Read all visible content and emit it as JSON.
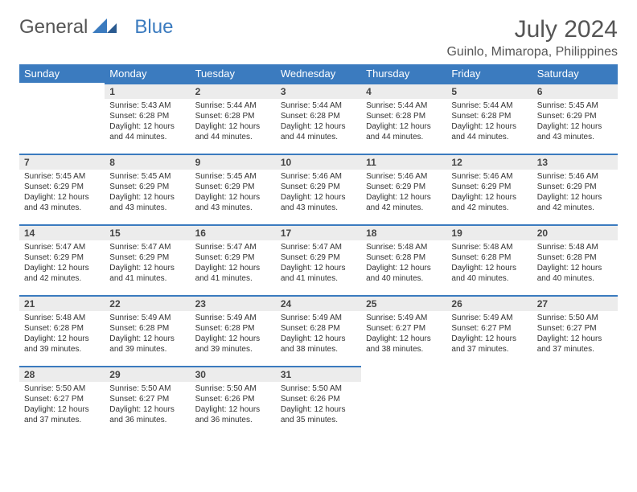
{
  "brand": {
    "part1": "General",
    "part2": "Blue"
  },
  "title": "July 2024",
  "location": "Guinlo, Mimaropa, Philippines",
  "weekdays": [
    "Sunday",
    "Monday",
    "Tuesday",
    "Wednesday",
    "Thursday",
    "Friday",
    "Saturday"
  ],
  "colors": {
    "header_bg": "#3b7bbf",
    "header_text": "#ffffff",
    "daynum_bg": "#ececec",
    "daynum_border": "#3b7bbf",
    "text": "#333333",
    "brand_gray": "#555555",
    "brand_blue": "#3b7bbf"
  },
  "start_offset": 1,
  "days": [
    {
      "n": 1,
      "sunrise": "5:43 AM",
      "sunset": "6:28 PM",
      "daylight": "12 hours and 44 minutes."
    },
    {
      "n": 2,
      "sunrise": "5:44 AM",
      "sunset": "6:28 PM",
      "daylight": "12 hours and 44 minutes."
    },
    {
      "n": 3,
      "sunrise": "5:44 AM",
      "sunset": "6:28 PM",
      "daylight": "12 hours and 44 minutes."
    },
    {
      "n": 4,
      "sunrise": "5:44 AM",
      "sunset": "6:28 PM",
      "daylight": "12 hours and 44 minutes."
    },
    {
      "n": 5,
      "sunrise": "5:44 AM",
      "sunset": "6:28 PM",
      "daylight": "12 hours and 44 minutes."
    },
    {
      "n": 6,
      "sunrise": "5:45 AM",
      "sunset": "6:29 PM",
      "daylight": "12 hours and 43 minutes."
    },
    {
      "n": 7,
      "sunrise": "5:45 AM",
      "sunset": "6:29 PM",
      "daylight": "12 hours and 43 minutes."
    },
    {
      "n": 8,
      "sunrise": "5:45 AM",
      "sunset": "6:29 PM",
      "daylight": "12 hours and 43 minutes."
    },
    {
      "n": 9,
      "sunrise": "5:45 AM",
      "sunset": "6:29 PM",
      "daylight": "12 hours and 43 minutes."
    },
    {
      "n": 10,
      "sunrise": "5:46 AM",
      "sunset": "6:29 PM",
      "daylight": "12 hours and 43 minutes."
    },
    {
      "n": 11,
      "sunrise": "5:46 AM",
      "sunset": "6:29 PM",
      "daylight": "12 hours and 42 minutes."
    },
    {
      "n": 12,
      "sunrise": "5:46 AM",
      "sunset": "6:29 PM",
      "daylight": "12 hours and 42 minutes."
    },
    {
      "n": 13,
      "sunrise": "5:46 AM",
      "sunset": "6:29 PM",
      "daylight": "12 hours and 42 minutes."
    },
    {
      "n": 14,
      "sunrise": "5:47 AM",
      "sunset": "6:29 PM",
      "daylight": "12 hours and 42 minutes."
    },
    {
      "n": 15,
      "sunrise": "5:47 AM",
      "sunset": "6:29 PM",
      "daylight": "12 hours and 41 minutes."
    },
    {
      "n": 16,
      "sunrise": "5:47 AM",
      "sunset": "6:29 PM",
      "daylight": "12 hours and 41 minutes."
    },
    {
      "n": 17,
      "sunrise": "5:47 AM",
      "sunset": "6:29 PM",
      "daylight": "12 hours and 41 minutes."
    },
    {
      "n": 18,
      "sunrise": "5:48 AM",
      "sunset": "6:28 PM",
      "daylight": "12 hours and 40 minutes."
    },
    {
      "n": 19,
      "sunrise": "5:48 AM",
      "sunset": "6:28 PM",
      "daylight": "12 hours and 40 minutes."
    },
    {
      "n": 20,
      "sunrise": "5:48 AM",
      "sunset": "6:28 PM",
      "daylight": "12 hours and 40 minutes."
    },
    {
      "n": 21,
      "sunrise": "5:48 AM",
      "sunset": "6:28 PM",
      "daylight": "12 hours and 39 minutes."
    },
    {
      "n": 22,
      "sunrise": "5:49 AM",
      "sunset": "6:28 PM",
      "daylight": "12 hours and 39 minutes."
    },
    {
      "n": 23,
      "sunrise": "5:49 AM",
      "sunset": "6:28 PM",
      "daylight": "12 hours and 39 minutes."
    },
    {
      "n": 24,
      "sunrise": "5:49 AM",
      "sunset": "6:28 PM",
      "daylight": "12 hours and 38 minutes."
    },
    {
      "n": 25,
      "sunrise": "5:49 AM",
      "sunset": "6:27 PM",
      "daylight": "12 hours and 38 minutes."
    },
    {
      "n": 26,
      "sunrise": "5:49 AM",
      "sunset": "6:27 PM",
      "daylight": "12 hours and 37 minutes."
    },
    {
      "n": 27,
      "sunrise": "5:50 AM",
      "sunset": "6:27 PM",
      "daylight": "12 hours and 37 minutes."
    },
    {
      "n": 28,
      "sunrise": "5:50 AM",
      "sunset": "6:27 PM",
      "daylight": "12 hours and 37 minutes."
    },
    {
      "n": 29,
      "sunrise": "5:50 AM",
      "sunset": "6:27 PM",
      "daylight": "12 hours and 36 minutes."
    },
    {
      "n": 30,
      "sunrise": "5:50 AM",
      "sunset": "6:26 PM",
      "daylight": "12 hours and 36 minutes."
    },
    {
      "n": 31,
      "sunrise": "5:50 AM",
      "sunset": "6:26 PM",
      "daylight": "12 hours and 35 minutes."
    }
  ],
  "labels": {
    "sunrise": "Sunrise:",
    "sunset": "Sunset:",
    "daylight": "Daylight:"
  }
}
